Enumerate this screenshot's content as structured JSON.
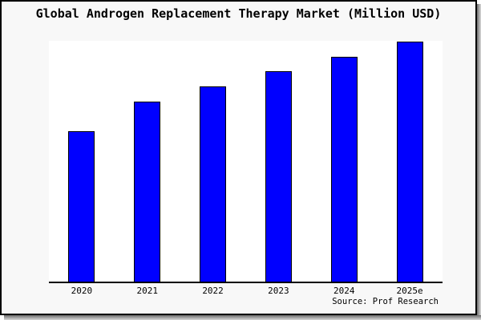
{
  "chart_data": {
    "type": "bar",
    "title": "Global Androgen Replacement Therapy Market (Million USD)",
    "categories": [
      "2020",
      "2021",
      "2022",
      "2023",
      "2024",
      "2025e"
    ],
    "values": [
      62.7,
      75.0,
      81.3,
      87.7,
      93.7,
      100.0
    ],
    "value_scale": "relative index (no y-axis tick labels shown in image; tallest bar 2025e = 100)",
    "xlabel": "",
    "ylabel": "",
    "ylim": [
      0,
      100.3
    ],
    "grid": false,
    "legend": null,
    "bar_color": "#0000FF",
    "bar_border_color": "#000000",
    "source": "Source: Prof Research"
  },
  "colors": {
    "frame_background": "#f8f8f8",
    "plot_background": "#ffffff",
    "frame_border": "#000000",
    "shadow": "#6e6e6e",
    "text": "#000000"
  }
}
